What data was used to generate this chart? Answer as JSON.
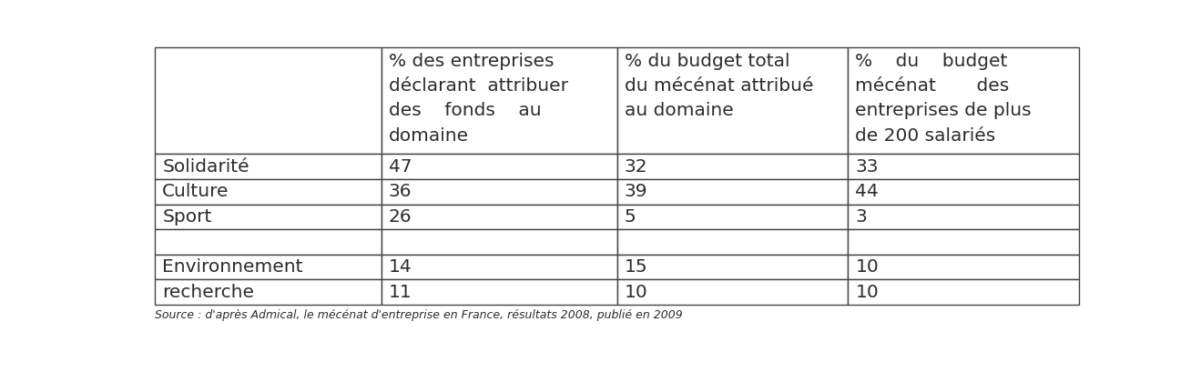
{
  "col_headers": [
    "",
    "% des entreprises\ndéclarant  attribuer\ndes    fonds    au\ndomaine",
    "% du budget total\ndu mécénat attribué\nau domaine",
    "%    du    budget\nmécénat       des\nentreprises de plus\nde 200 salariés"
  ],
  "row_labels": [
    "Solidarité",
    "Culture",
    "Sport",
    "",
    "Environnement",
    "recherche"
  ],
  "data": [
    [
      "47",
      "32",
      "33"
    ],
    [
      "36",
      "39",
      "44"
    ],
    [
      "26",
      "5",
      "3"
    ],
    [
      "",
      "",
      ""
    ],
    [
      "14",
      "15",
      "10"
    ],
    [
      "11",
      "10",
      "10"
    ]
  ],
  "background_color": "#ffffff",
  "text_color": "#2c2c2c",
  "border_color": "#444444",
  "font_size": 14.5,
  "header_font_size": 14.5,
  "footer": "Source : d'après Admical, le mécénat d'entreprise en France, résultats 2008, publié en 2009"
}
